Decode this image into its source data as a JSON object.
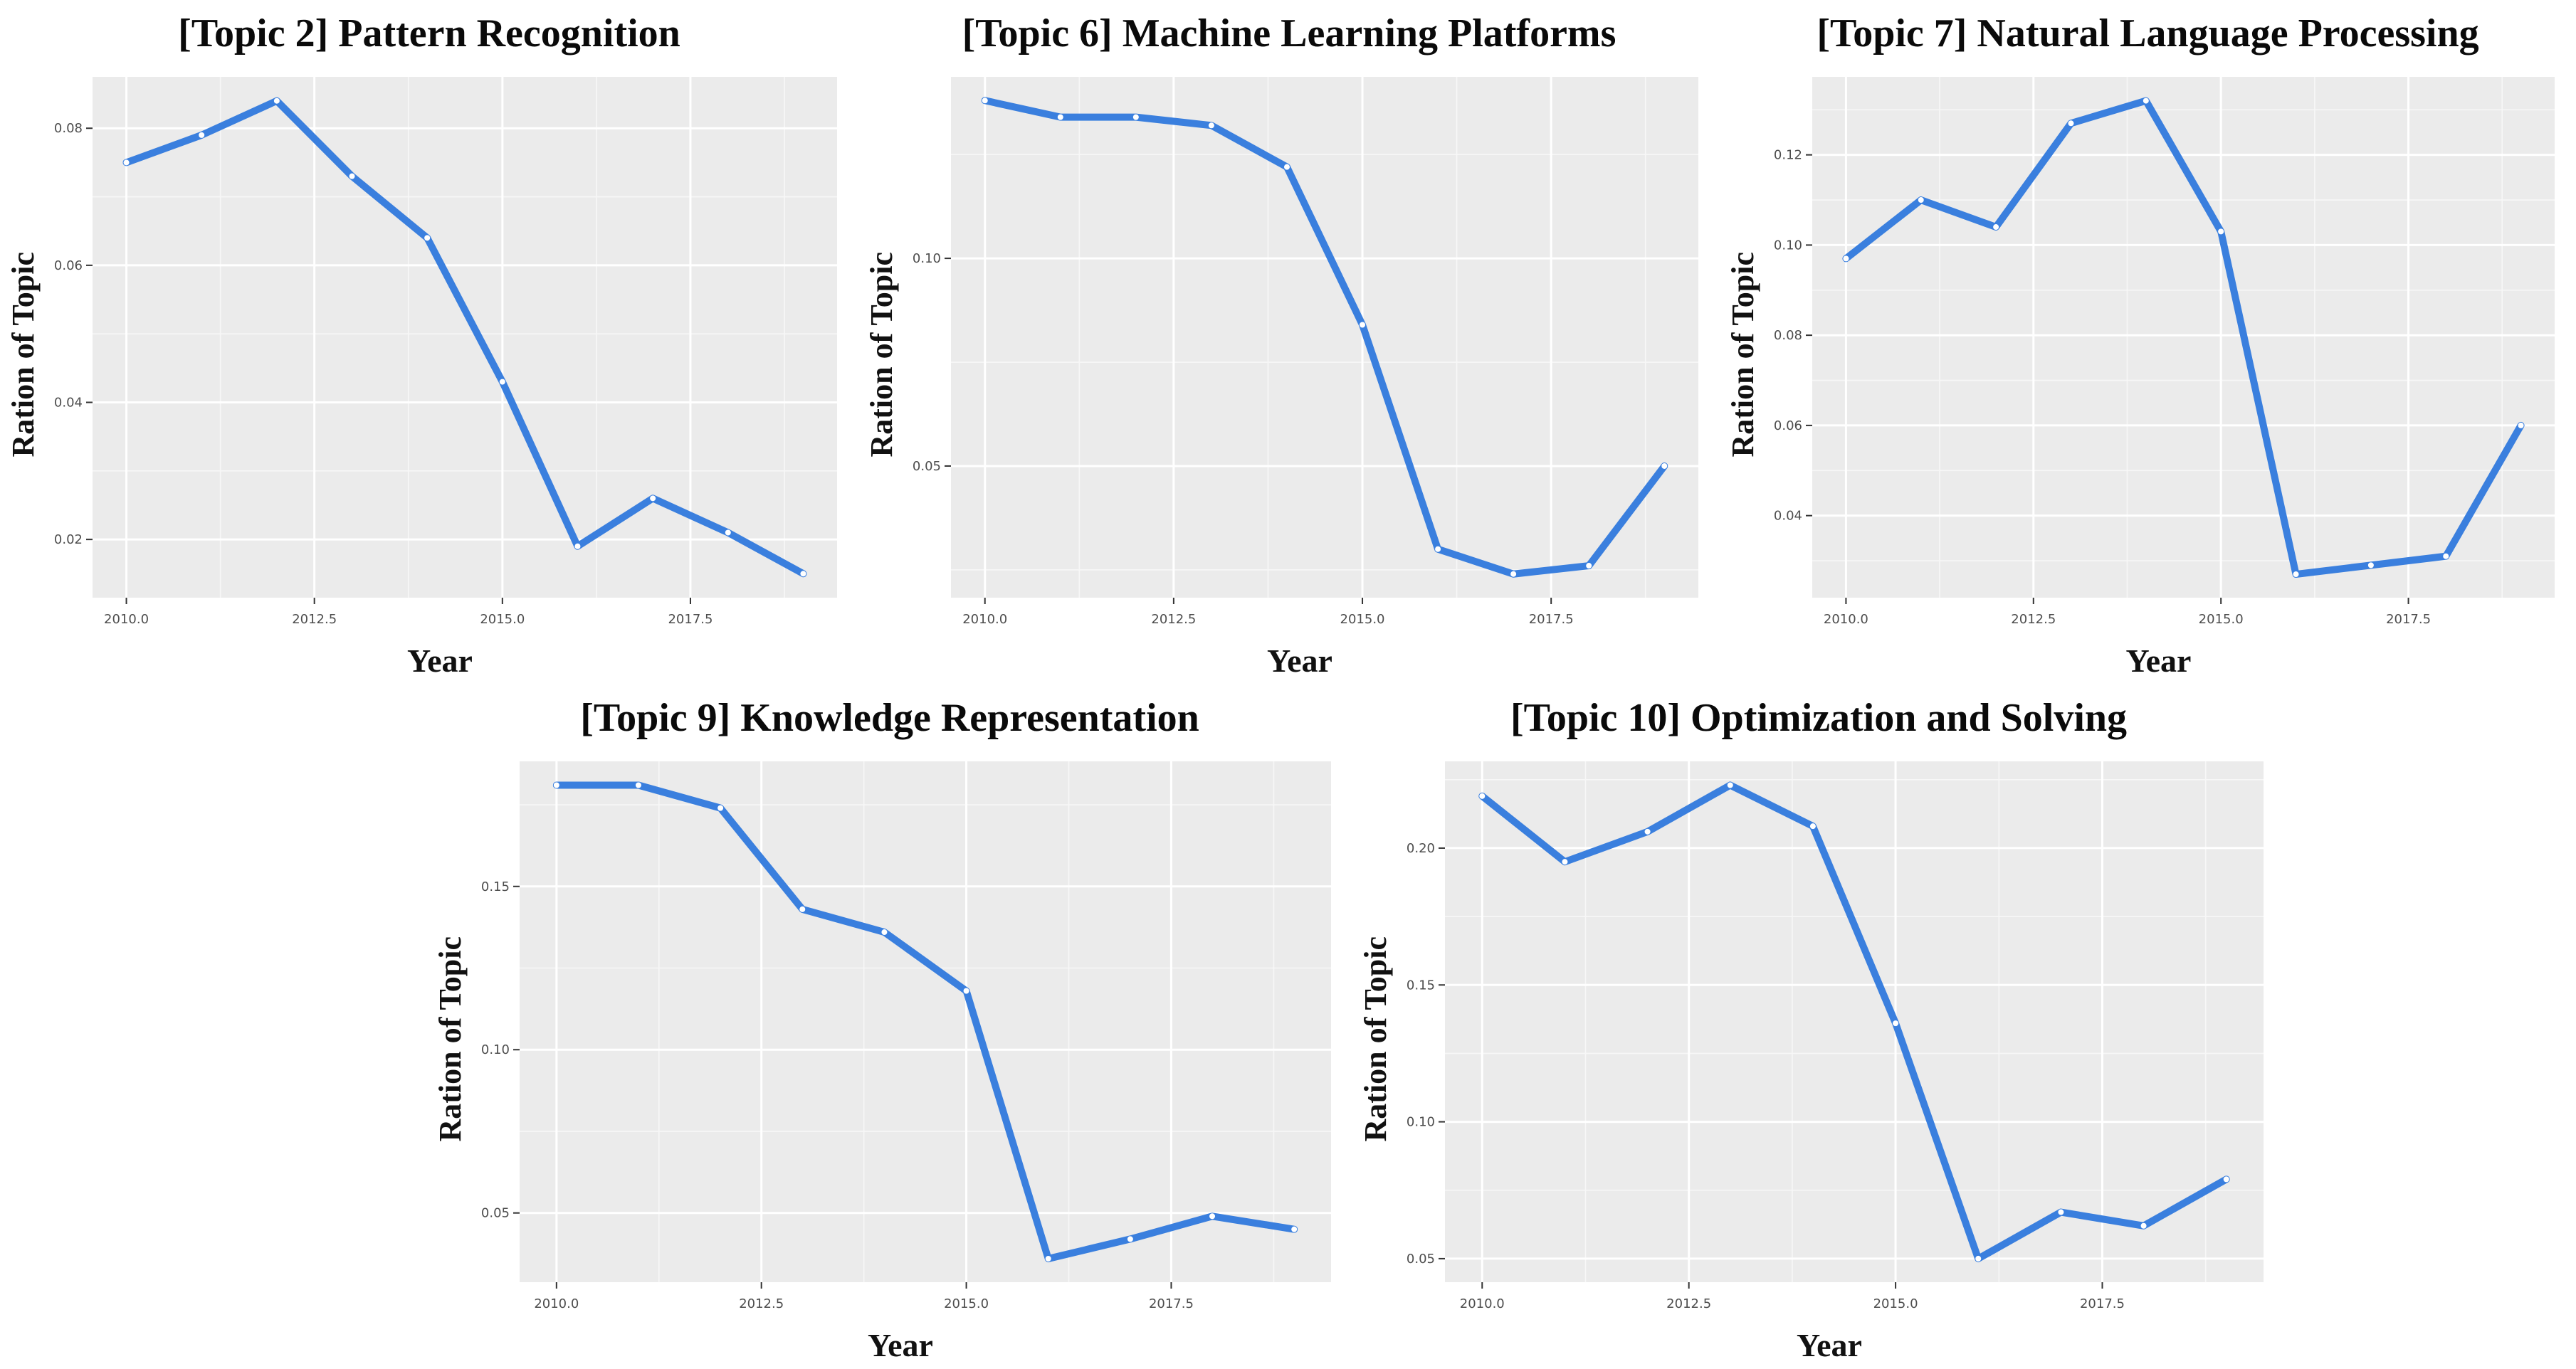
{
  "figure": {
    "background": "#ffffff",
    "panel_background": "#ebebeb",
    "grid_major_color": "#ffffff",
    "grid_minor_color": "#f7f7f7",
    "line_color": "#3a7fde",
    "marker_color": "#ffffff",
    "tick_mark_color": "#333333",
    "tick_label_color": "#4d4d4d",
    "title_color": "#0a0a0a"
  },
  "chart_data": [
    {
      "type": "line",
      "title": "[Topic 2] Pattern Recognition",
      "xlabel": "Year",
      "ylabel": "Ration of Topic",
      "x": [
        2010,
        2011,
        2012,
        2013,
        2014,
        2015,
        2016,
        2017,
        2018,
        2019
      ],
      "values": [
        0.075,
        0.079,
        0.084,
        0.073,
        0.064,
        0.043,
        0.019,
        0.026,
        0.021,
        0.015
      ],
      "xlim": [
        2009.55,
        2019.45
      ],
      "ylim": [
        0.0115,
        0.0875
      ],
      "x_ticks": [
        2010.0,
        2012.5,
        2015.0,
        2017.5
      ],
      "x_tick_labels": [
        "2010.0",
        "2012.5",
        "2015.0",
        "2017.5"
      ],
      "y_ticks": [
        0.02,
        0.04,
        0.06,
        0.08
      ],
      "y_tick_labels": [
        "0.02",
        "0.04",
        "0.06",
        "0.08"
      ],
      "grid": true,
      "legend": "none"
    },
    {
      "type": "line",
      "title": "[Topic 6] Machine Learning Platforms",
      "xlabel": "Year",
      "ylabel": "Ration of Topic",
      "x": [
        2010,
        2011,
        2012,
        2013,
        2014,
        2015,
        2016,
        2017,
        2018,
        2019
      ],
      "values": [
        0.138,
        0.134,
        0.134,
        0.132,
        0.122,
        0.084,
        0.03,
        0.024,
        0.026,
        0.05
      ],
      "xlim": [
        2009.55,
        2019.45
      ],
      "ylim": [
        0.0183,
        0.1437
      ],
      "x_ticks": [
        2010.0,
        2012.5,
        2015.0,
        2017.5
      ],
      "x_tick_labels": [
        "2010.0",
        "2012.5",
        "2015.0",
        "2017.5"
      ],
      "y_ticks": [
        0.05,
        0.1
      ],
      "y_tick_labels": [
        "0.05",
        "0.10"
      ],
      "grid": true,
      "legend": "none"
    },
    {
      "type": "line",
      "title": "[Topic 7] Natural Language Processing",
      "xlabel": "Year",
      "ylabel": "Ration of Topic",
      "x": [
        2010,
        2011,
        2012,
        2013,
        2014,
        2015,
        2016,
        2017,
        2018,
        2019
      ],
      "values": [
        0.097,
        0.11,
        0.104,
        0.127,
        0.132,
        0.103,
        0.027,
        0.029,
        0.031,
        0.06
      ],
      "xlim": [
        2009.55,
        2019.45
      ],
      "ylim": [
        0.0218,
        0.1373
      ],
      "x_ticks": [
        2010.0,
        2012.5,
        2015.0,
        2017.5
      ],
      "x_tick_labels": [
        "2010.0",
        "2012.5",
        "2015.0",
        "2017.5"
      ],
      "y_ticks": [
        0.04,
        0.06,
        0.08,
        0.1,
        0.12
      ],
      "y_tick_labels": [
        "0.04",
        "0.06",
        "0.08",
        "0.10",
        "0.12"
      ],
      "grid": true,
      "legend": "none"
    },
    {
      "type": "line",
      "title": "[Topic 9] Knowledge Representation",
      "xlabel": "Year",
      "ylabel": "Ration of Topic",
      "x": [
        2010,
        2011,
        2012,
        2013,
        2014,
        2015,
        2016,
        2017,
        2018,
        2019
      ],
      "values": [
        0.181,
        0.181,
        0.174,
        0.143,
        0.136,
        0.118,
        0.036,
        0.042,
        0.049,
        0.045
      ],
      "xlim": [
        2009.55,
        2019.45
      ],
      "ylim": [
        0.0288,
        0.1883
      ],
      "x_ticks": [
        2010.0,
        2012.5,
        2015.0,
        2017.5
      ],
      "x_tick_labels": [
        "2010.0",
        "2012.5",
        "2015.0",
        "2017.5"
      ],
      "y_ticks": [
        0.05,
        0.1,
        0.15
      ],
      "y_tick_labels": [
        "0.05",
        "0.10",
        "0.15"
      ],
      "grid": true,
      "legend": "none"
    },
    {
      "type": "line",
      "title": "[Topic 10] Optimization and Solving",
      "xlabel": "Year",
      "ylabel": "Ration of Topic",
      "x": [
        2010,
        2011,
        2012,
        2013,
        2014,
        2015,
        2016,
        2017,
        2018,
        2019
      ],
      "values": [
        0.219,
        0.195,
        0.206,
        0.223,
        0.208,
        0.136,
        0.05,
        0.067,
        0.062,
        0.079
      ],
      "xlim": [
        2009.55,
        2019.45
      ],
      "ylim": [
        0.0414,
        0.2317
      ],
      "x_ticks": [
        2010.0,
        2012.5,
        2015.0,
        2017.5
      ],
      "x_tick_labels": [
        "2010.0",
        "2012.5",
        "2015.0",
        "2017.5"
      ],
      "y_ticks": [
        0.05,
        0.1,
        0.15,
        0.2
      ],
      "y_tick_labels": [
        "0.05",
        "0.10",
        "0.15",
        "0.20"
      ],
      "grid": true,
      "legend": "none"
    }
  ]
}
